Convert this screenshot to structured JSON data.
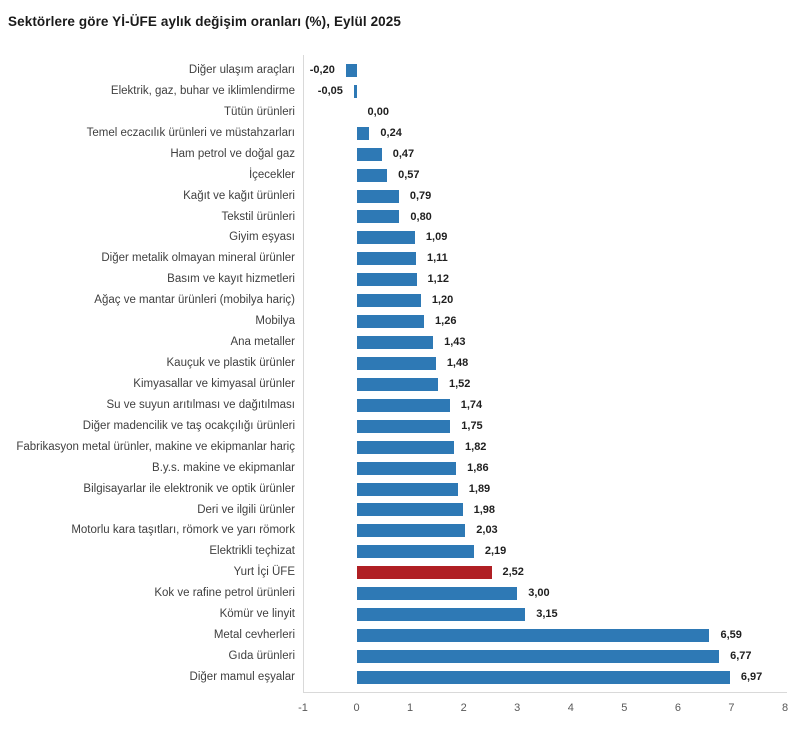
{
  "title": "Sektörlere göre Yİ-ÜFE aylık değişim oranları (%), Eylül 2025",
  "chart_data": {
    "type": "bar",
    "orientation": "horizontal",
    "title": "Sektörlere göre Yİ-ÜFE aylık değişim oranları (%), Eylül 2025",
    "xlabel": "",
    "ylabel": "",
    "xlim": [
      -1,
      8
    ],
    "x_ticks": [
      -1,
      0,
      1,
      2,
      3,
      4,
      5,
      6,
      7,
      8
    ],
    "grid": false,
    "legend": "none",
    "bar_color": "#2e79b5",
    "highlight_color": "#b01f24",
    "highlight_category": "Yurt İçi ÜFE",
    "highlight_index": 24,
    "categories": [
      "Diğer ulaşım araçları",
      "Elektrik, gaz, buhar ve iklimlendirme",
      "Tütün ürünleri",
      "Temel eczacılık ürünleri ve müstahzarları",
      "Ham petrol ve doğal gaz",
      "İçecekler",
      "Kağıt ve kağıt ürünleri",
      "Tekstil ürünleri",
      "Giyim eşyası",
      "Diğer metalik olmayan mineral ürünler",
      "Basım ve kayıt hizmetleri",
      "Ağaç ve mantar ürünleri (mobilya hariç)",
      "Mobilya",
      "Ana metaller",
      "Kauçuk ve plastik ürünler",
      "Kimyasallar ve kimyasal ürünler",
      "Su ve suyun arıtılması ve dağıtılması",
      "Diğer madencilik ve taş ocakçılığı ürünleri",
      "Fabrikasyon metal ürünler, makine ve ekipmanlar hariç",
      "B.y.s. makine ve ekipmanlar",
      "Bilgisayarlar ile elektronik ve optik ürünler",
      "Deri ve ilgili ürünler",
      "Motorlu kara taşıtları, römork ve yarı römork",
      "Elektrikli teçhizat",
      "Yurt İçi ÜFE",
      "Kok ve rafine petrol ürünleri",
      "Kömür ve linyit",
      "Metal cevherleri",
      "Gıda ürünleri",
      "Diğer mamul eşyalar"
    ],
    "values": [
      -0.2,
      -0.05,
      0.0,
      0.24,
      0.47,
      0.57,
      0.79,
      0.8,
      1.09,
      1.11,
      1.12,
      1.2,
      1.26,
      1.43,
      1.48,
      1.52,
      1.74,
      1.75,
      1.82,
      1.86,
      1.89,
      1.98,
      2.03,
      2.19,
      2.52,
      3.0,
      3.15,
      6.59,
      6.77,
      6.97
    ],
    "value_labels": [
      "-0,20",
      "-0,05",
      "0,00",
      "0,24",
      "0,47",
      "0,57",
      "0,79",
      "0,80",
      "1,09",
      "1,11",
      "1,12",
      "1,20",
      "1,26",
      "1,43",
      "1,48",
      "1,52",
      "1,74",
      "1,75",
      "1,82",
      "1,86",
      "1,89",
      "1,98",
      "2,03",
      "2,19",
      "2,52",
      "3,00",
      "3,15",
      "6,59",
      "6,77",
      "6,97"
    ]
  }
}
